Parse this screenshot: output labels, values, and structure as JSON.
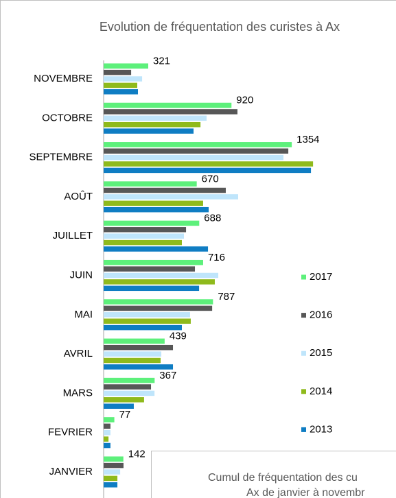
{
  "chart_data": {
    "type": "bar",
    "orientation": "horizontal",
    "title": "Evolution de fréquentation des curistes à Ax",
    "categories": [
      "NOVEMBRE",
      "OCTOBRE",
      "SEPTEMBRE",
      "AOÛT",
      "JUILLET",
      "JUIN",
      "MAI",
      "AVRIL",
      "MARS",
      "FEVRIER",
      "JANVIER"
    ],
    "series": [
      {
        "name": "2017",
        "color": "#5df07b",
        "values": [
          321,
          920,
          1354,
          670,
          688,
          716,
          787,
          439,
          367,
          77,
          142
        ]
      },
      {
        "name": "2016",
        "color": "#575757",
        "values": [
          198,
          963,
          1329,
          879,
          593,
          657,
          781,
          499,
          341,
          49,
          143
        ]
      },
      {
        "name": "2015",
        "color": "#bfe5fb",
        "values": [
          277,
          741,
          1294,
          968,
          578,
          825,
          622,
          415,
          366,
          49,
          119
        ]
      },
      {
        "name": "2014",
        "color": "#8fba1c",
        "values": [
          242,
          697,
          1507,
          716,
          563,
          800,
          627,
          410,
          291,
          35,
          99
        ]
      },
      {
        "name": "2013",
        "color": "#0f7dc3",
        "values": [
          247,
          647,
          1492,
          756,
          751,
          687,
          563,
          499,
          217,
          49,
          99
        ]
      }
    ],
    "xlim": [
      0,
      2104
    ],
    "legend": "right"
  },
  "inset": {
    "title_lines": [
      "Cumul de fréquentation des cu",
      "Ax de janvier à novembr"
    ]
  }
}
